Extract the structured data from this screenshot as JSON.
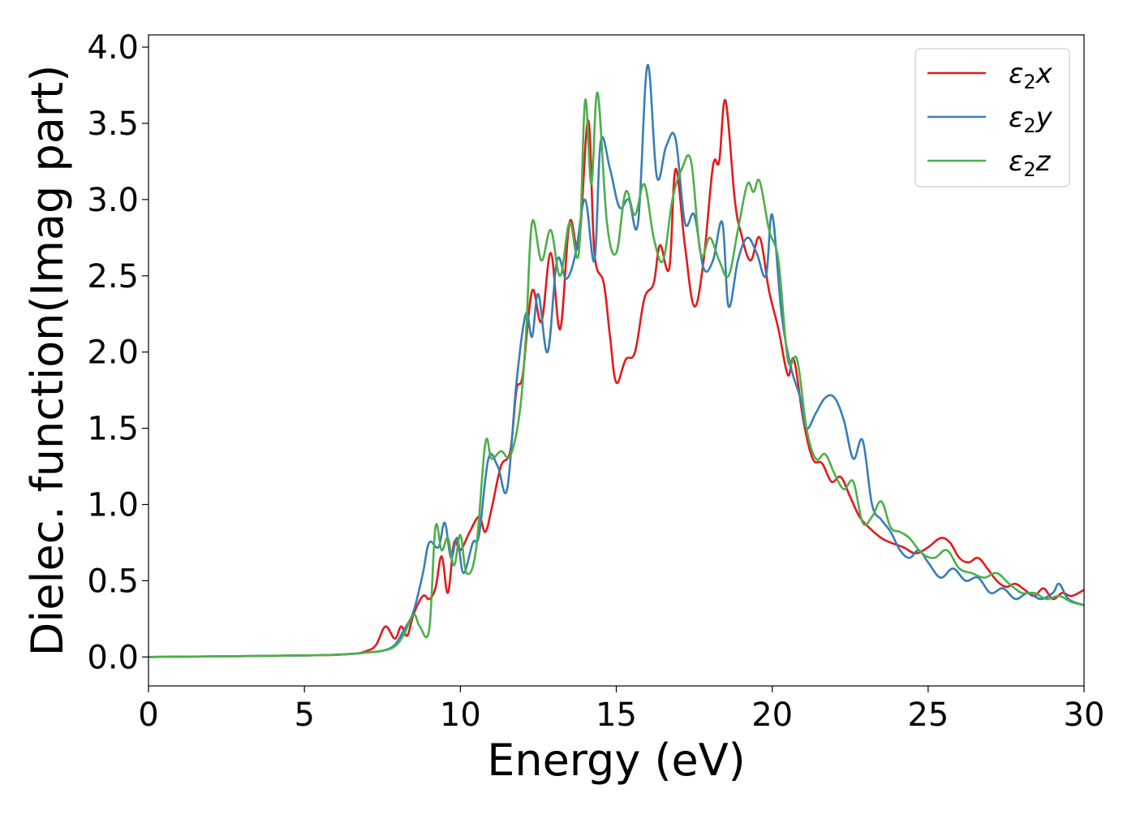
{
  "chart_data": {
    "type": "line",
    "xlabel": "Energy (eV)",
    "ylabel": "Dielec. function(Imag part)",
    "xlim": [
      0,
      30
    ],
    "ylim": [
      -0.19,
      4.08
    ],
    "xticks": [
      0,
      5,
      10,
      15,
      20,
      25,
      30
    ],
    "xtick_labels": [
      "0",
      "5",
      "10",
      "15",
      "20",
      "25",
      "30"
    ],
    "yticks": [
      0.0,
      0.5,
      1.0,
      1.5,
      2.0,
      2.5,
      3.0,
      3.5,
      4.0
    ],
    "ytick_labels": [
      "0.0",
      "0.5",
      "1.0",
      "1.5",
      "2.0",
      "2.5",
      "3.0",
      "3.5",
      "4.0"
    ],
    "grid": false,
    "legend_position": "top-right",
    "series": [
      {
        "name": "ε2x",
        "legend_base": "ε",
        "legend_sub": "2",
        "legend_suffix": "x",
        "color": "#e41a1c",
        "x": [
          0,
          5,
          6.5,
          7.0,
          7.3,
          7.6,
          7.9,
          8.1,
          8.3,
          8.5,
          8.8,
          9.0,
          9.2,
          9.4,
          9.6,
          9.8,
          10.0,
          10.3,
          10.6,
          10.8,
          11.0,
          11.3,
          11.6,
          11.8,
          12.0,
          12.3,
          12.6,
          12.9,
          13.2,
          13.5,
          13.8,
          14.1,
          14.3,
          14.6,
          14.8,
          15.0,
          15.3,
          15.6,
          15.9,
          16.2,
          16.4,
          16.7,
          16.9,
          17.2,
          17.5,
          17.8,
          18.1,
          18.3,
          18.5,
          18.8,
          19.0,
          19.3,
          19.6,
          19.9,
          20.2,
          20.5,
          20.7,
          21.0,
          21.3,
          21.6,
          21.9,
          22.2,
          22.5,
          22.8,
          23.1,
          23.5,
          23.8,
          24.2,
          24.6,
          25.0,
          25.4,
          25.7,
          26.0,
          26.3,
          26.6,
          26.9,
          27.2,
          27.5,
          27.8,
          28.1,
          28.4,
          28.7,
          29.0,
          29.3,
          29.6,
          30
        ],
        "y": [
          0.0,
          0.01,
          0.02,
          0.04,
          0.08,
          0.2,
          0.12,
          0.2,
          0.14,
          0.28,
          0.4,
          0.38,
          0.45,
          0.66,
          0.42,
          0.75,
          0.7,
          0.82,
          0.92,
          0.82,
          0.97,
          1.25,
          1.35,
          1.75,
          1.85,
          2.4,
          2.2,
          2.65,
          2.15,
          2.85,
          2.7,
          3.52,
          2.65,
          2.45,
          2.1,
          1.8,
          1.95,
          2.0,
          2.35,
          2.45,
          2.7,
          2.55,
          3.2,
          2.7,
          2.3,
          2.6,
          3.22,
          3.25,
          3.65,
          3.0,
          2.78,
          2.6,
          2.75,
          2.4,
          2.15,
          1.85,
          1.95,
          1.55,
          1.3,
          1.27,
          1.15,
          1.18,
          1.05,
          0.92,
          0.85,
          0.78,
          0.75,
          0.72,
          0.68,
          0.72,
          0.78,
          0.75,
          0.65,
          0.62,
          0.65,
          0.58,
          0.5,
          0.46,
          0.48,
          0.44,
          0.4,
          0.45,
          0.38,
          0.42,
          0.4,
          0.44
        ]
      },
      {
        "name": "ε2y",
        "legend_base": "ε",
        "legend_sub": "2",
        "legend_suffix": "y",
        "color": "#377eb8",
        "x": [
          0,
          5,
          6.5,
          7.0,
          7.5,
          7.9,
          8.2,
          8.5,
          8.8,
          9.0,
          9.3,
          9.5,
          9.7,
          9.9,
          10.1,
          10.4,
          10.6,
          10.9,
          11.2,
          11.5,
          11.8,
          12.1,
          12.3,
          12.5,
          12.8,
          13.1,
          13.4,
          13.7,
          14.0,
          14.3,
          14.5,
          14.8,
          15.1,
          15.4,
          15.7,
          16.0,
          16.3,
          16.6,
          16.9,
          17.2,
          17.5,
          17.8,
          18.1,
          18.4,
          18.6,
          18.9,
          19.2,
          19.5,
          19.8,
          20.0,
          20.3,
          20.6,
          20.9,
          21.1,
          21.4,
          21.7,
          22.0,
          22.3,
          22.6,
          22.9,
          23.2,
          23.5,
          23.8,
          24.1,
          24.4,
          24.7,
          25.0,
          25.4,
          25.8,
          26.2,
          26.6,
          27.0,
          27.4,
          27.8,
          28.2,
          28.6,
          29.0,
          29.2,
          29.5,
          30
        ],
        "y": [
          0.0,
          0.01,
          0.02,
          0.03,
          0.04,
          0.08,
          0.18,
          0.3,
          0.55,
          0.75,
          0.72,
          0.88,
          0.65,
          0.78,
          0.55,
          0.75,
          0.8,
          1.3,
          1.25,
          1.1,
          1.8,
          2.25,
          2.1,
          2.38,
          2.0,
          2.6,
          2.48,
          2.65,
          3.0,
          2.6,
          3.38,
          3.2,
          2.95,
          3.0,
          2.85,
          3.88,
          3.15,
          3.35,
          3.4,
          2.85,
          2.9,
          2.55,
          2.6,
          2.85,
          2.3,
          2.6,
          2.75,
          2.65,
          2.5,
          2.9,
          2.25,
          1.9,
          1.7,
          1.5,
          1.6,
          1.7,
          1.7,
          1.55,
          1.3,
          1.42,
          1.0,
          0.9,
          0.82,
          0.7,
          0.65,
          0.7,
          0.62,
          0.52,
          0.58,
          0.5,
          0.52,
          0.42,
          0.45,
          0.38,
          0.42,
          0.38,
          0.42,
          0.48,
          0.38,
          0.34
        ]
      },
      {
        "name": "ε2z",
        "legend_base": "ε",
        "legend_sub": "2",
        "legend_suffix": "z",
        "color": "#4daf4a",
        "x": [
          0,
          5,
          6.5,
          7.0,
          7.5,
          7.9,
          8.2,
          8.5,
          8.7,
          9.0,
          9.2,
          9.4,
          9.6,
          9.8,
          10.0,
          10.2,
          10.5,
          10.8,
          11.0,
          11.3,
          11.6,
          11.9,
          12.1,
          12.3,
          12.6,
          12.9,
          13.2,
          13.5,
          13.8,
          14.0,
          14.2,
          14.4,
          14.7,
          15.0,
          15.3,
          15.6,
          15.9,
          16.2,
          16.5,
          16.8,
          17.1,
          17.4,
          17.7,
          18.0,
          18.3,
          18.6,
          18.9,
          19.2,
          19.4,
          19.6,
          19.9,
          20.2,
          20.5,
          20.8,
          21.1,
          21.4,
          21.7,
          22.0,
          22.3,
          22.6,
          22.9,
          23.2,
          23.5,
          23.8,
          24.1,
          24.4,
          24.8,
          25.2,
          25.6,
          26.0,
          26.4,
          26.8,
          27.2,
          27.6,
          28.0,
          28.4,
          28.8,
          29.2,
          29.6,
          30
        ],
        "y": [
          0.0,
          0.01,
          0.02,
          0.03,
          0.04,
          0.07,
          0.15,
          0.28,
          0.2,
          0.18,
          0.85,
          0.7,
          0.78,
          0.6,
          0.8,
          0.55,
          0.7,
          1.4,
          1.3,
          1.35,
          1.32,
          1.6,
          2.1,
          2.85,
          2.6,
          2.8,
          2.5,
          2.85,
          2.65,
          3.65,
          3.1,
          3.7,
          2.85,
          2.65,
          3.05,
          2.9,
          3.1,
          2.75,
          2.6,
          3.0,
          3.2,
          3.25,
          2.65,
          2.75,
          2.6,
          2.5,
          2.8,
          3.1,
          3.05,
          3.12,
          2.8,
          2.6,
          1.95,
          1.95,
          1.5,
          1.3,
          1.33,
          1.2,
          1.1,
          1.15,
          0.88,
          0.92,
          1.02,
          0.85,
          0.82,
          0.78,
          0.68,
          0.65,
          0.7,
          0.58,
          0.55,
          0.52,
          0.55,
          0.48,
          0.42,
          0.42,
          0.38,
          0.4,
          0.36,
          0.34
        ]
      }
    ]
  }
}
